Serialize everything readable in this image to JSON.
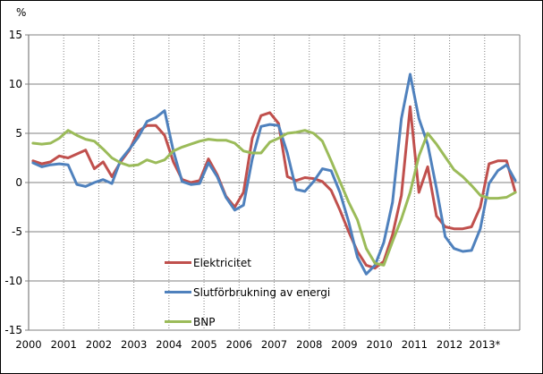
{
  "figure": {
    "unit_label": "%",
    "background_color": "#ffffff",
    "outer_border_color": "#000000",
    "grid_color": "#808080",
    "axis_color": "#808080",
    "text_color": "#000000"
  },
  "legend": {
    "position": "inside-lower-left",
    "items": [
      {
        "label": "Elektricitet",
        "color": "#C0504D"
      },
      {
        "label": "Slutförbrukning av energi",
        "color": "#4F81BD"
      },
      {
        "label": "BNP",
        "color": "#9BBB59"
      }
    ]
  },
  "chart_data": {
    "type": "line",
    "title": "",
    "xlabel": "",
    "ylabel": "%",
    "ylim": [
      -15,
      15
    ],
    "y_ticks": [
      15,
      10,
      5,
      0,
      -5,
      -10,
      -15
    ],
    "x_tick_labels": [
      "2000",
      "2001",
      "2002",
      "2003",
      "2004",
      "2005",
      "2006",
      "2007",
      "2008",
      "2009",
      "2010",
      "2011",
      "2012",
      "2013*"
    ],
    "x_frequency": "quarterly",
    "x_range": "2000Q1–2013Q4",
    "grid": {
      "horizontal": "solid",
      "vertical": "dotted-per-year"
    },
    "legend_position": "inside-lower-left",
    "series": [
      {
        "name": "Elektricitet",
        "color": "#C0504D",
        "values": [
          2.2,
          1.9,
          2.1,
          2.7,
          2.5,
          2.9,
          3.3,
          1.4,
          2.1,
          0.6,
          2.1,
          3.3,
          5.2,
          5.8,
          5.8,
          4.8,
          2.1,
          0.3,
          0.0,
          0.2,
          2.4,
          0.8,
          -1.4,
          -2.5,
          -1.0,
          4.5,
          6.8,
          7.1,
          6.0,
          0.6,
          0.2,
          0.5,
          0.4,
          0.1,
          -0.8,
          -2.8,
          -5.0,
          -7.0,
          -8.4,
          -8.7,
          -8.0,
          -5.3,
          -1.3,
          7.7,
          -1.0,
          1.6,
          -3.4,
          -4.5,
          -4.7,
          -4.7,
          -4.5,
          -2.5,
          1.9,
          2.2,
          2.2,
          -1.0
        ]
      },
      {
        "name": "Slutförbrukning av energi",
        "color": "#4F81BD",
        "values": [
          2.0,
          1.6,
          1.8,
          1.9,
          1.8,
          -0.2,
          -0.4,
          0.0,
          0.3,
          -0.1,
          2.3,
          3.4,
          4.6,
          6.2,
          6.6,
          7.3,
          3.2,
          0.1,
          -0.2,
          -0.1,
          2.0,
          0.6,
          -1.5,
          -2.8,
          -2.3,
          2.4,
          5.7,
          5.9,
          5.8,
          3.0,
          -0.7,
          -0.9,
          0.1,
          1.4,
          1.2,
          -1.0,
          -4.0,
          -7.6,
          -9.3,
          -8.4,
          -6.1,
          -2.0,
          6.5,
          11.0,
          6.5,
          3.9,
          -0.6,
          -5.5,
          -6.7,
          -7.0,
          -6.9,
          -4.7,
          -0.1,
          1.2,
          1.8,
          0.2
        ]
      },
      {
        "name": "BNP",
        "color": "#9BBB59",
        "values": [
          4.0,
          3.9,
          4.0,
          4.5,
          5.3,
          4.8,
          4.4,
          4.2,
          3.4,
          2.5,
          2.0,
          1.7,
          1.8,
          2.3,
          2.0,
          2.3,
          3.2,
          3.6,
          3.9,
          4.2,
          4.4,
          4.3,
          4.3,
          4.0,
          3.2,
          3.0,
          3.0,
          4.1,
          4.5,
          5.0,
          5.1,
          5.3,
          5.0,
          4.2,
          2.2,
          0.1,
          -2.0,
          -3.8,
          -6.7,
          -8.2,
          -8.4,
          -6.0,
          -3.7,
          -1.0,
          2.7,
          5.0,
          3.9,
          2.6,
          1.3,
          0.6,
          -0.3,
          -1.3,
          -1.6,
          -1.6,
          -1.5,
          -1.0
        ]
      }
    ]
  }
}
